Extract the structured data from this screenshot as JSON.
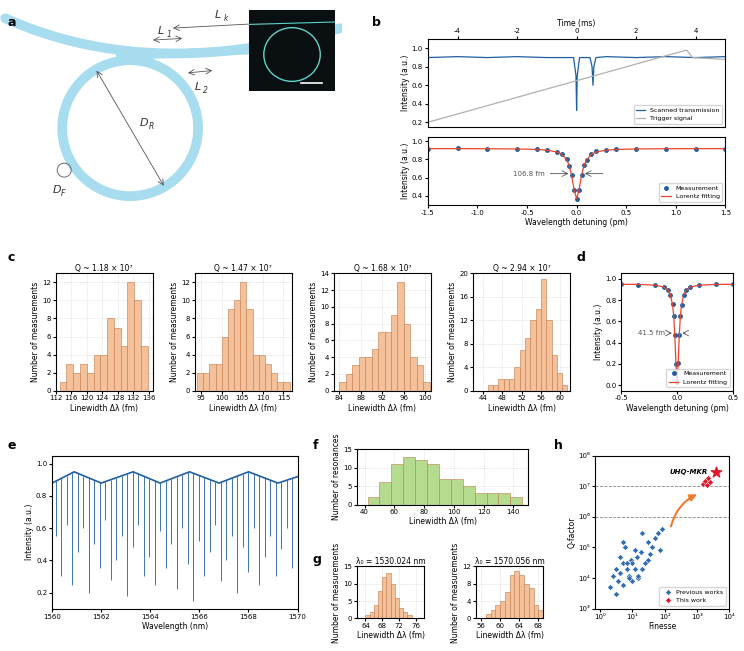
{
  "chart_data": [
    {
      "type": "diagram",
      "panel_label": "a",
      "labels": [
        {
          "main": "L",
          "sub": "k"
        },
        {
          "main": "L",
          "sub": "1"
        },
        {
          "main": "L",
          "sub": "2"
        },
        {
          "main": "D",
          "sub": "R"
        },
        {
          "main": "D",
          "sub": "F"
        }
      ]
    },
    {
      "type": "line",
      "panel_label": "b",
      "x_label": "Time (ms)",
      "y_label": "Intensity (a.u.)",
      "xlim": [
        -5,
        5
      ],
      "xticks": [
        -4,
        -2,
        0,
        2,
        4
      ],
      "ylim": [
        0.15,
        1.1
      ],
      "yticks": [
        0.2,
        0.4,
        0.6,
        0.8,
        1.0
      ],
      "legend": "lower right",
      "series": [
        {
          "name": "Scanned transmission",
          "color": "#1f5f9e",
          "line_style": "solid",
          "x": [
            -5,
            -4,
            -3,
            -2,
            -1,
            -0.1,
            -0.02,
            0,
            0.02,
            0.1,
            0.45,
            0.52,
            0.55,
            0.58,
            0.65,
            1,
            2,
            3,
            4,
            5
          ],
          "values": [
            0.9,
            0.91,
            0.9,
            0.91,
            0.9,
            0.9,
            0.7,
            0.33,
            0.7,
            0.9,
            0.9,
            0.8,
            0.6,
            0.8,
            0.9,
            0.91,
            0.9,
            0.91,
            0.9,
            0.91
          ]
        },
        {
          "name": "Trigger signal",
          "color": "#b0b0b0",
          "line_style": "solid",
          "x": [
            -5,
            -3,
            -1,
            1,
            3,
            3.7,
            3.9,
            5
          ],
          "values": [
            0.2,
            0.38,
            0.56,
            0.74,
            0.92,
            0.98,
            0.9,
            0.88
          ]
        }
      ]
    },
    {
      "type": "line",
      "x_label": "Wavelength detuning (pm)",
      "y_label": "Intensity (a.u.)",
      "xlim": [
        -1.5,
        1.5
      ],
      "xticks": [
        -1.5,
        -1.0,
        -0.5,
        0.0,
        0.5,
        1.0,
        1.5
      ],
      "ylim": [
        0.3,
        1.05
      ],
      "yticks": [
        0.4,
        0.6,
        0.8,
        1.0
      ],
      "legend": "lower right",
      "annotations": [
        {
          "text": "106.8 fm",
          "x": [
            -0.0534,
            0.0534
          ],
          "y": 0.645
        }
      ],
      "series": [
        {
          "name": "Measurement",
          "color": "#1f5f9e",
          "marker": "o",
          "line_style": "none",
          "x": [
            -1.5,
            -1.2,
            -0.9,
            -0.6,
            -0.4,
            -0.3,
            -0.2,
            -0.15,
            -0.1,
            -0.075,
            -0.05,
            -0.025,
            0,
            0.025,
            0.05,
            0.075,
            0.1,
            0.15,
            0.2,
            0.3,
            0.4,
            0.6,
            0.9,
            1.2,
            1.5
          ],
          "values": [
            0.92,
            0.93,
            0.91,
            0.92,
            0.91,
            0.9,
            0.88,
            0.86,
            0.8,
            0.73,
            0.63,
            0.47,
            0.37,
            0.46,
            0.63,
            0.74,
            0.79,
            0.86,
            0.89,
            0.9,
            0.91,
            0.92,
            0.92,
            0.91,
            0.92
          ]
        },
        {
          "name": "Lorentz fitting",
          "color": "#e8452c",
          "line_style": "solid",
          "x": [
            -1.5,
            -1.2,
            -0.9,
            -0.6,
            -0.4,
            -0.3,
            -0.2,
            -0.15,
            -0.1,
            -0.075,
            -0.05,
            -0.025,
            0,
            0.025,
            0.05,
            0.075,
            0.1,
            0.15,
            0.2,
            0.3,
            0.4,
            0.6,
            0.9,
            1.2,
            1.5
          ],
          "values": [
            0.919,
            0.919,
            0.918,
            0.916,
            0.91,
            0.903,
            0.883,
            0.858,
            0.798,
            0.735,
            0.627,
            0.469,
            0.37,
            0.469,
            0.627,
            0.735,
            0.798,
            0.858,
            0.883,
            0.903,
            0.91,
            0.916,
            0.918,
            0.919,
            0.919
          ]
        }
      ]
    },
    {
      "type": "histogram",
      "panel_label": "c",
      "title": "Q ~ 1.18 × 10⁷",
      "x_label": "Linewidth Δλ (fm)",
      "y_label": "Number of measurements",
      "color": "#f5c19a",
      "grid": true,
      "bins": [
        113,
        114.75,
        116.5,
        118.25,
        120,
        121.75,
        123.5,
        125.25,
        127,
        128.75,
        130.5,
        132.25,
        134,
        135.75
      ],
      "counts": [
        1,
        3,
        2,
        3,
        2,
        4,
        4,
        8,
        7,
        5,
        12,
        10,
        5
      ],
      "xlim": [
        112,
        137
      ],
      "xticks": [
        112,
        116,
        120,
        124,
        128,
        132,
        136
      ],
      "ylim": [
        0,
        13
      ],
      "yticks": [
        0,
        2,
        4,
        6,
        8,
        10,
        12
      ]
    },
    {
      "type": "histogram",
      "title": "Q ~ 1.47 × 10⁷",
      "x_label": "Linewidth Δλ (fm)",
      "y_label": "Number of measurements",
      "color": "#f5c19a",
      "grid": true,
      "bins": [
        94,
        95.5,
        97,
        98.5,
        100,
        101.5,
        103,
        104.5,
        106,
        107.5,
        109,
        110.5,
        112,
        113.5,
        115,
        116.5
      ],
      "counts": [
        2,
        2,
        3,
        3,
        6,
        9,
        10,
        12,
        9,
        4,
        4,
        3,
        2,
        1,
        1
      ],
      "xlim": [
        93.5,
        117
      ],
      "xticks": [
        95,
        100,
        105,
        110,
        115
      ],
      "ylim": [
        0,
        13
      ],
      "yticks": [
        0,
        2,
        4,
        6,
        8,
        10,
        12
      ]
    },
    {
      "type": "histogram",
      "title": "Q ~ 1.68 × 10⁷",
      "x_label": "Linewidth Δλ (fm)",
      "y_label": "Number of measurements",
      "color": "#f5c19a",
      "grid": true,
      "bins": [
        84,
        85.2,
        86.4,
        87.6,
        88.8,
        90,
        91.2,
        92.4,
        93.6,
        94.8,
        96,
        97.2,
        98.4,
        99.6,
        100.8
      ],
      "counts": [
        1,
        2,
        3,
        4,
        4,
        5,
        7,
        7,
        9,
        13,
        8,
        4,
        3,
        1
      ],
      "xlim": [
        83,
        101
      ],
      "xticks": [
        84,
        88,
        92,
        96,
        100
      ],
      "ylim": [
        0,
        14
      ],
      "yticks": [
        0,
        2,
        4,
        6,
        8,
        10,
        12,
        14
      ]
    },
    {
      "type": "histogram",
      "title": "Q ~ 2.94 × 10⁷",
      "x_label": "Linewidth Δλ (fm)",
      "y_label": "Number of measurements",
      "color": "#f5c19a",
      "grid": true,
      "bins": [
        45,
        46.1,
        47.2,
        48.3,
        49.4,
        50.5,
        51.6,
        52.7,
        53.8,
        54.9,
        56,
        57.1,
        58.2,
        59.3,
        60.4,
        61.5
      ],
      "counts": [
        1,
        1,
        2,
        2,
        2,
        4,
        7,
        9,
        12,
        14,
        19,
        12,
        6,
        3,
        1
      ],
      "xlim": [
        42,
        62
      ],
      "xticks": [
        44,
        48,
        52,
        56,
        60
      ],
      "ylim": [
        0,
        20
      ],
      "yticks": [
        0,
        4,
        8,
        12,
        16,
        20
      ]
    },
    {
      "type": "line",
      "panel_label": "d",
      "x_label": "Wavelength detuning (pm)",
      "y_label": "Intensity (a.u.)",
      "xlim": [
        -0.5,
        0.5
      ],
      "xticks": [
        -0.5,
        {
          "value": 0,
          "label": "0.0"
        },
        0.5
      ],
      "ylim": [
        -0.05,
        1.05
      ],
      "yticks": [
        0.0,
        0.2,
        0.4,
        0.6,
        0.8,
        1.0
      ],
      "legend": "lower right",
      "annotations": [
        {
          "text": "41.5 fm",
          "x": [
            -0.0208,
            0.0208
          ],
          "y": 0.49
        }
      ],
      "series": [
        {
          "name": "Measurement",
          "color": "#1f5f9e",
          "marker": "o",
          "line_style": "none",
          "x": [
            -0.5,
            -0.35,
            -0.2,
            -0.12,
            -0.08,
            -0.06,
            -0.04,
            -0.03,
            -0.02,
            -0.01,
            0,
            0.01,
            0.02,
            0.03,
            0.04,
            0.06,
            0.08,
            0.12,
            0.2,
            0.35,
            0.5
          ],
          "values": [
            0.95,
            0.94,
            0.94,
            0.92,
            0.89,
            0.85,
            0.76,
            0.65,
            0.47,
            0.2,
            0.03,
            0.21,
            0.47,
            0.65,
            0.75,
            0.85,
            0.89,
            0.92,
            0.94,
            0.95,
            0.95
          ]
        },
        {
          "name": "Lorentz fitting",
          "color": "#e8452c",
          "line_style": "solid",
          "x": [
            -0.5,
            -0.35,
            -0.2,
            -0.12,
            -0.08,
            -0.06,
            -0.04,
            -0.03,
            -0.02,
            -0.01,
            0,
            0.01,
            0.02,
            0.03,
            0.04,
            0.06,
            0.08,
            0.12,
            0.2,
            0.35,
            0.5
          ],
          "values": [
            0.948,
            0.947,
            0.94,
            0.923,
            0.892,
            0.851,
            0.754,
            0.651,
            0.472,
            0.203,
            0.03,
            0.203,
            0.472,
            0.651,
            0.754,
            0.851,
            0.892,
            0.923,
            0.94,
            0.947,
            0.948
          ]
        }
      ]
    },
    {
      "type": "spectrum",
      "panel_label": "e",
      "x_label": "Wavelength (nm)",
      "y_label": "Intensity (a.u.)",
      "color": "#1f5f9e",
      "xlim": [
        1560,
        1570
      ],
      "xticks": [
        1560,
        1562,
        1564,
        1566,
        1568,
        1570
      ],
      "ylim": [
        0.1,
        1.05
      ],
      "yticks": [
        0.2,
        0.4,
        0.6,
        0.8,
        1.0
      ],
      "baseline": {
        "x": [
          1560,
          1560.9,
          1562.0,
          1563.3,
          1564.4,
          1565.6,
          1566.8,
          1568.0,
          1569.2,
          1570
        ],
        "values": [
          0.88,
          0.95,
          0.88,
          0.95,
          0.88,
          0.95,
          0.88,
          0.95,
          0.88,
          0.92
        ]
      },
      "dips": {
        "x": [
          1560.15,
          1560.38,
          1560.6,
          1560.82,
          1561.05,
          1561.27,
          1561.5,
          1561.72,
          1561.94,
          1562.17,
          1562.39,
          1562.62,
          1562.84,
          1563.06,
          1563.29,
          1563.51,
          1563.74,
          1563.96,
          1564.18,
          1564.41,
          1564.63,
          1564.86,
          1565.08,
          1565.3,
          1565.53,
          1565.75,
          1565.98,
          1566.2,
          1566.42,
          1566.65,
          1566.87,
          1567.1,
          1567.32,
          1567.54,
          1567.77,
          1567.99,
          1568.22,
          1568.44,
          1568.66,
          1568.89,
          1569.11,
          1569.34,
          1569.56,
          1569.78
        ],
        "values": [
          0.55,
          0.3,
          0.62,
          0.25,
          0.45,
          0.6,
          0.2,
          0.5,
          0.35,
          0.65,
          0.28,
          0.4,
          0.55,
          0.18,
          0.48,
          0.62,
          0.3,
          0.42,
          0.25,
          0.58,
          0.35,
          0.5,
          0.22,
          0.6,
          0.38,
          0.15,
          0.52,
          0.3,
          0.45,
          0.62,
          0.27,
          0.4,
          0.55,
          0.2,
          0.48,
          0.33,
          0.6,
          0.25,
          0.42,
          0.55,
          0.3,
          0.47,
          0.6,
          0.35
        ]
      }
    },
    {
      "type": "histogram",
      "panel_label": "f",
      "x_label": "Linewidth Δλ (fm)",
      "y_label": "Number of resonances",
      "color": "#b5dc8e",
      "grid": true,
      "bins": [
        42,
        50,
        58,
        66,
        74,
        82,
        90,
        98,
        106,
        114,
        122,
        130,
        138,
        146
      ],
      "counts": [
        2,
        6,
        11,
        13,
        12,
        11,
        7,
        7,
        5,
        3,
        3,
        3,
        2
      ],
      "xlim": [
        35,
        150
      ],
      "xticks": [
        40,
        60,
        80,
        100,
        120,
        140
      ],
      "ylim": [
        0,
        15
      ],
      "yticks": [
        0,
        5,
        10,
        15
      ]
    },
    {
      "type": "histogram",
      "panel_label": "g",
      "title": "λ₀ = 1530.024 nm",
      "x_label": "Linewidth Δλ (fm)",
      "y_label": "Number of measurements",
      "color": "#f5c19a",
      "grid": true,
      "bins": [
        64,
        65,
        66,
        67,
        68,
        69,
        70,
        71,
        72,
        73,
        74,
        75
      ],
      "counts": [
        1,
        2,
        4,
        8,
        12,
        13,
        10,
        6,
        3,
        2,
        1
      ],
      "xlim": [
        62,
        78
      ],
      "xticks": [
        64,
        68,
        72,
        76
      ],
      "ylim": [
        0,
        15
      ],
      "yticks": [
        0,
        5,
        10,
        15
      ]
    },
    {
      "type": "histogram",
      "title": "λ₀ = 1570.056 nm",
      "x_label": "Linewidth Δλ (fm)",
      "y_label": "Number of measurements",
      "color": "#f5c19a",
      "grid": true,
      "bins": [
        57,
        58,
        59,
        60,
        61,
        62,
        63,
        64,
        65,
        66,
        67,
        68,
        69
      ],
      "counts": [
        1,
        2,
        3,
        4,
        6,
        10,
        11,
        10,
        8,
        7,
        3,
        2
      ],
      "xlim": [
        55,
        69
      ],
      "xticks": [
        56,
        60,
        64,
        68
      ],
      "ylim": [
        0,
        12
      ],
      "yticks": [
        0,
        4,
        8,
        12
      ]
    },
    {
      "type": "scatter",
      "panel_label": "h",
      "x_label": "Finesse",
      "y_label": "Q-factor",
      "log": true,
      "legend": "lower right",
      "xlim": [
        0.7,
        10000
      ],
      "xticks": [
        {
          "value": 1,
          "label": "10⁰"
        },
        {
          "value": 10,
          "label": "10¹"
        },
        {
          "value": 100,
          "label": "10²"
        },
        {
          "value": 1000,
          "label": "10³"
        },
        {
          "value": 10000,
          "label": "10⁴"
        }
      ],
      "ylim": [
        1000,
        100000000
      ],
      "yticks": [
        {
          "value": 1000,
          "label": "10³"
        },
        {
          "value": 10000,
          "label": "10⁴"
        },
        {
          "value": 100000,
          "label": "10⁵"
        },
        {
          "value": 1000000,
          "label": "10⁶"
        },
        {
          "value": 10000000,
          "label": "10⁷"
        },
        {
          "value": 100000000,
          "label": "10⁸"
        }
      ],
      "reference_lines": [
        1000000,
        10000000
      ],
      "series": [
        {
          "name": "Previous works",
          "color": "#2f6db5",
          "marker": "D",
          "x": [
            2,
            3,
            3.5,
            4,
            5,
            5,
            6,
            7,
            8,
            9,
            10,
            10,
            12,
            14,
            15,
            18,
            20,
            25,
            30,
            35,
            40,
            50,
            60,
            80,
            3,
            5,
            8,
            12,
            20,
            2.5,
            4,
            7,
            15,
            30,
            70
          ],
          "values": [
            5000,
            20000,
            8000,
            15000,
            30000,
            6000,
            100000,
            20000,
            12000,
            40000,
            30000,
            8000,
            20000,
            50000,
            10000,
            70000,
            20000,
            30000,
            150000,
            60000,
            100000,
            200000,
            300000,
            400000,
            3000,
            150000,
            10000,
            80000,
            300000,
            12000,
            50000,
            30000,
            12000,
            40000,
            80000
          ]
        },
        {
          "name": "This work",
          "color": "#e0182d",
          "marker": "D",
          "x": [
            1500,
            1800,
            2200,
            2500,
            2000
          ],
          "values": [
            12000000,
            15000000,
            18000000,
            14000000,
            11000000
          ]
        }
      ],
      "annotations": [
        {
          "text": "UHQ-MKR",
          "x": 4000,
          "y": 30000000,
          "marker": "*",
          "color": "#e0182d"
        }
      ]
    }
  ]
}
